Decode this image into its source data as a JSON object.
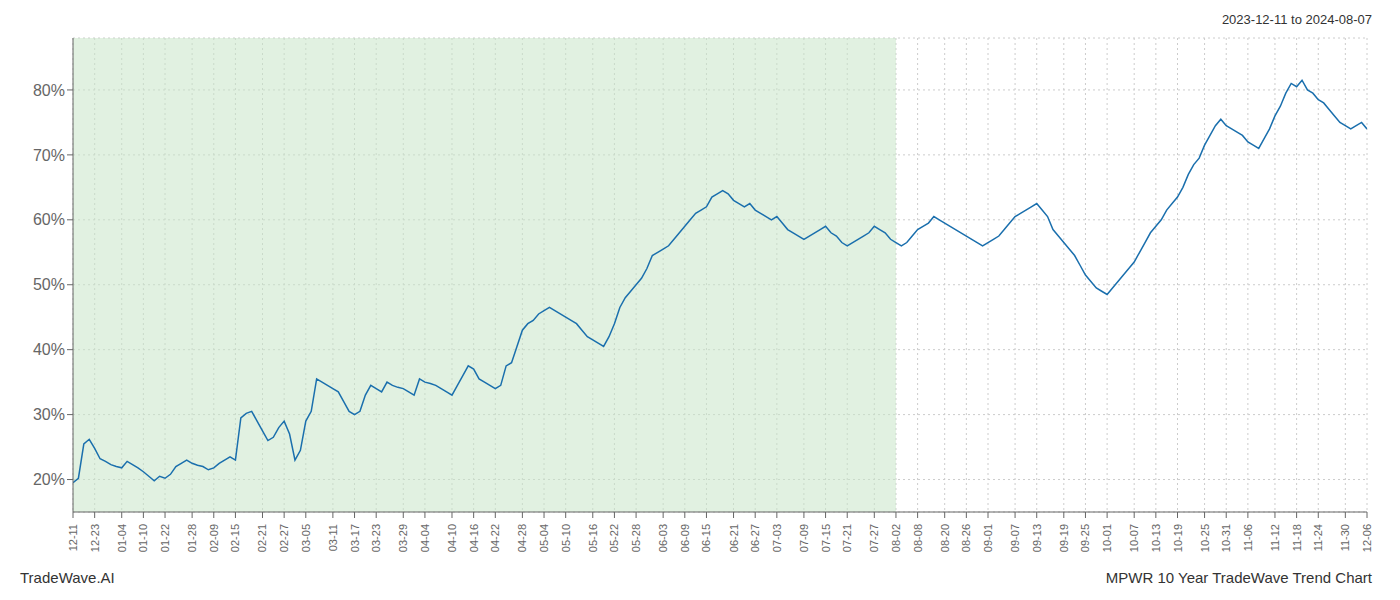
{
  "chart_data": {
    "type": "line",
    "title": "MPWR 10 Year TradeWave Trend Chart",
    "subtitle": "2023-12-11 to 2024-08-07",
    "annotations": [
      "TradeWave.AI"
    ],
    "color": "#1a6fad",
    "grid": true,
    "ylim": [
      15,
      88
    ],
    "yticks": [
      {
        "value": 20,
        "label": "20%"
      },
      {
        "value": 30,
        "label": "30%"
      },
      {
        "value": 40,
        "label": "40%"
      },
      {
        "value": 50,
        "label": "50%"
      },
      {
        "value": 60,
        "label": "60%"
      },
      {
        "value": 70,
        "label": "70%"
      },
      {
        "value": 80,
        "label": "80%"
      }
    ],
    "shaded_range": {
      "from": "12-11",
      "to": "08-02",
      "color": "#c8e6c9"
    },
    "categories": [
      "12-11",
      null,
      null,
      null,
      "12-23",
      null,
      null,
      null,
      null,
      "01-04",
      null,
      null,
      null,
      "01-10",
      null,
      null,
      null,
      "01-22",
      null,
      null,
      null,
      null,
      "01-28",
      null,
      null,
      null,
      "02-09",
      null,
      null,
      null,
      "02-15",
      null,
      null,
      null,
      null,
      "02-21",
      null,
      null,
      null,
      "02-27",
      null,
      null,
      null,
      "03-05",
      null,
      null,
      null,
      null,
      "03-11",
      null,
      null,
      null,
      "03-17",
      null,
      null,
      null,
      "03-23",
      null,
      null,
      null,
      null,
      "03-29",
      null,
      null,
      null,
      "04-04",
      null,
      null,
      null,
      null,
      "04-10",
      null,
      null,
      null,
      "04-16",
      null,
      null,
      null,
      "04-22",
      null,
      null,
      null,
      null,
      "04-28",
      null,
      null,
      null,
      "05-04",
      null,
      null,
      null,
      "05-10",
      null,
      null,
      null,
      null,
      "05-16",
      null,
      null,
      null,
      "05-22",
      null,
      null,
      null,
      "05-28",
      null,
      null,
      null,
      null,
      "06-03",
      null,
      null,
      null,
      "06-09",
      null,
      null,
      null,
      "06-15",
      null,
      null,
      null,
      null,
      "06-21",
      null,
      null,
      null,
      "06-27",
      null,
      null,
      null,
      "07-03",
      null,
      null,
      null,
      null,
      "07-09",
      null,
      null,
      null,
      "07-15",
      null,
      null,
      null,
      "07-21",
      null,
      null,
      null,
      null,
      "07-27",
      null,
      null,
      null,
      "08-02",
      null,
      null,
      null,
      "08-08",
      null,
      null,
      null,
      null,
      "08-20",
      null,
      null,
      null,
      "08-26",
      null,
      null,
      null,
      "09-01",
      null,
      null,
      null,
      null,
      "09-07",
      null,
      null,
      null,
      "09-13",
      null,
      null,
      null,
      null,
      "09-19",
      null,
      null,
      null,
      "09-25",
      null,
      null,
      null,
      "10-01",
      null,
      null,
      null,
      null,
      "10-07",
      null,
      null,
      null,
      "10-13",
      null,
      null,
      null,
      "10-19",
      null,
      null,
      null,
      null,
      "10-25",
      null,
      null,
      null,
      "10-31",
      null,
      null,
      null,
      "11-06",
      null,
      null,
      null,
      null,
      "11-12",
      null,
      null,
      null,
      "11-18",
      null,
      null,
      null,
      "11-24",
      null,
      null,
      null,
      null,
      "11-30",
      null,
      null,
      null,
      "12-06"
    ],
    "values": [
      19.5,
      20.2,
      25.5,
      26.2,
      24.8,
      23.2,
      22.8,
      22.3,
      22.0,
      21.8,
      22.8,
      22.3,
      21.8,
      21.2,
      20.5,
      19.8,
      20.5,
      20.2,
      20.8,
      22.0,
      22.5,
      23.0,
      22.5,
      22.2,
      22.0,
      21.5,
      21.8,
      22.5,
      23.0,
      23.5,
      23.0,
      29.5,
      30.2,
      30.5,
      29.0,
      27.5,
      26.0,
      26.5,
      28.0,
      29.0,
      27.0,
      23.0,
      24.5,
      29.0,
      30.5,
      35.5,
      35.0,
      34.5,
      34.0,
      33.5,
      32.0,
      30.5,
      30.0,
      30.5,
      33.0,
      34.5,
      34.0,
      33.5,
      35.0,
      34.5,
      34.2,
      34.0,
      33.5,
      33.0,
      35.5,
      35.0,
      34.8,
      34.5,
      34.0,
      33.5,
      33.0,
      34.5,
      36.0,
      37.5,
      37.0,
      35.5,
      35.0,
      34.5,
      34.0,
      34.5,
      37.5,
      38.0,
      40.5,
      43.0,
      44.0,
      44.5,
      45.5,
      46.0,
      46.5,
      46.0,
      45.5,
      45.0,
      44.5,
      44.0,
      43.0,
      42.0,
      41.5,
      41.0,
      40.5,
      42.0,
      44.0,
      46.5,
      48.0,
      49.0,
      50.0,
      51.0,
      52.5,
      54.5,
      55.0,
      55.5,
      56.0,
      57.0,
      58.0,
      59.0,
      60.0,
      61.0,
      61.5,
      62.0,
      63.5,
      64.0,
      64.5,
      64.0,
      63.0,
      62.5,
      62.0,
      62.5,
      61.5,
      61.0,
      60.5,
      60.0,
      60.5,
      59.5,
      58.5,
      58.0,
      57.5,
      57.0,
      57.5,
      58.0,
      58.5,
      59.0,
      58.0,
      57.5,
      56.5,
      56.0,
      56.5,
      57.0,
      57.5,
      58.0,
      59.0,
      58.5,
      58.0,
      57.0,
      56.5,
      56.0,
      56.5,
      57.5,
      58.5,
      59.0,
      59.5,
      60.5,
      60.0,
      59.5,
      59.0,
      58.5,
      58.0,
      57.5,
      57.0,
      56.5,
      56.0,
      56.5,
      57.0,
      57.5,
      58.5,
      59.5,
      60.5,
      61.0,
      61.5,
      62.0,
      62.5,
      61.5,
      60.5,
      58.5,
      57.5,
      56.5,
      55.5,
      54.5,
      53.0,
      51.5,
      50.5,
      49.5,
      49.0,
      48.5,
      49.5,
      50.5,
      51.5,
      52.5,
      53.5,
      55.0,
      56.5,
      58.0,
      59.0,
      60.0,
      61.5,
      62.5,
      63.5,
      65.0,
      67.0,
      68.5,
      69.5,
      71.5,
      73.0,
      74.5,
      75.5,
      74.5,
      74.0,
      73.5,
      73.0,
      72.0,
      71.5,
      71.0,
      72.5,
      74.0,
      76.0,
      77.5,
      79.5,
      81.0,
      80.5,
      81.5,
      80.0,
      79.5,
      78.5,
      78.0,
      77.0,
      76.0,
      75.0,
      74.5,
      74.0,
      74.5,
      75.0,
      74.0
    ]
  }
}
